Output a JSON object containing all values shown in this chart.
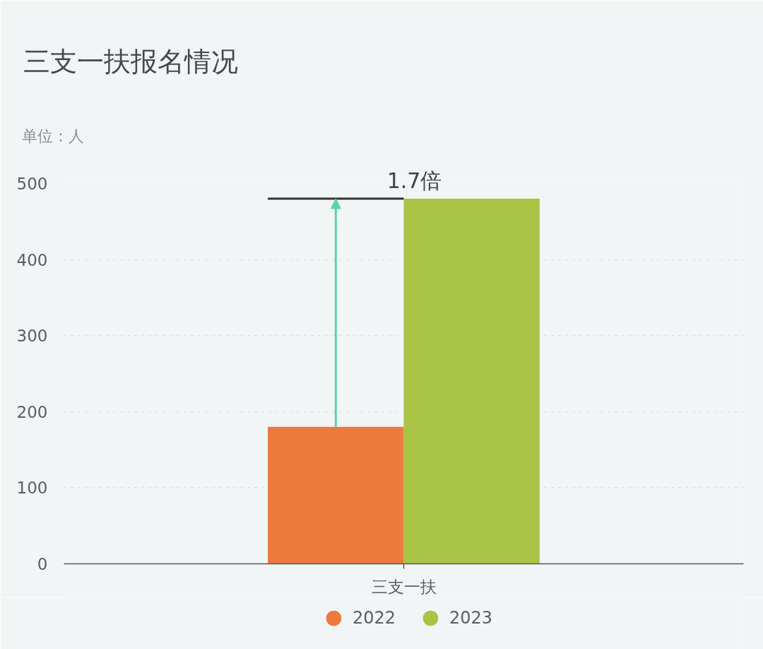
{
  "chart_data": {
    "type": "bar",
    "title": "三支一扶报名情况",
    "subtitle": "单位：人",
    "categories": [
      "三支一扶"
    ],
    "series": [
      {
        "name": "2022",
        "color": "#ec7a3d",
        "values": [
          180
        ]
      },
      {
        "name": "2023",
        "color": "#a9c444",
        "values": [
          480
        ]
      }
    ],
    "ylim": [
      0,
      500
    ],
    "yticks": [
      0,
      100,
      200,
      300,
      400,
      500
    ],
    "grid": "y",
    "legend": "bottom",
    "ref_lines": [
      {
        "axis": "y",
        "value": 480,
        "label": "1.7倍",
        "color": "#2f3435"
      }
    ]
  }
}
